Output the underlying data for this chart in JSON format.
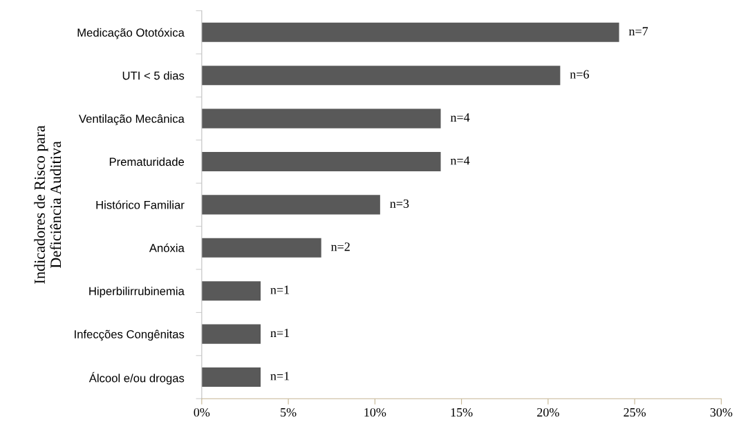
{
  "chart_data": {
    "type": "bar",
    "orientation": "horizontal",
    "ylabel": "Indicadores de Risco para\nDeficiência Auditiva",
    "categories": [
      "Medicação Ototóxica",
      "UTI < 5 dias",
      "Ventilação Mecânica",
      "Prematuridade",
      "Histórico Familiar",
      "Anóxia",
      "Hiperbilirrubinemia",
      "Infecções Congênitas",
      "Álcool e/ou drogas"
    ],
    "values": [
      24.1,
      20.7,
      13.8,
      13.8,
      10.3,
      6.9,
      3.4,
      3.4,
      3.4
    ],
    "annotations": [
      {
        "text": "n=7",
        "x": 24.1,
        "y": "Medicação Ototóxica"
      },
      {
        "text": "n=6",
        "x": 20.7,
        "y": "UTI < 5 dias"
      },
      {
        "text": "n=4",
        "x": 13.8,
        "y": "Ventilação Mecânica"
      },
      {
        "text": "n=4",
        "x": 13.8,
        "y": "Prematuridade"
      },
      {
        "text": "n=3",
        "x": 10.3,
        "y": "Histórico Familiar"
      },
      {
        "text": "n=2",
        "x": 6.9,
        "y": "Anóxia"
      },
      {
        "text": "n=1",
        "x": 3.4,
        "y": "Hiperbilirrubinemia"
      },
      {
        "text": "n=1",
        "x": 3.4,
        "y": "Infecções Congênitas"
      },
      {
        "text": "n=1",
        "x": 3.4,
        "y": "Álcool e/ou drogas"
      }
    ],
    "color": "#595959",
    "xlim": [
      0,
      30
    ],
    "xticks": [
      {
        "value": 0,
        "label": "0%"
      },
      {
        "value": 5,
        "label": "5%"
      },
      {
        "value": 10,
        "label": "10%"
      },
      {
        "value": 15,
        "label": "15%"
      },
      {
        "value": 20,
        "label": "20%"
      },
      {
        "value": 25,
        "label": "25%"
      },
      {
        "value": 30,
        "label": "30%"
      }
    ],
    "grid": false,
    "legend": false
  }
}
